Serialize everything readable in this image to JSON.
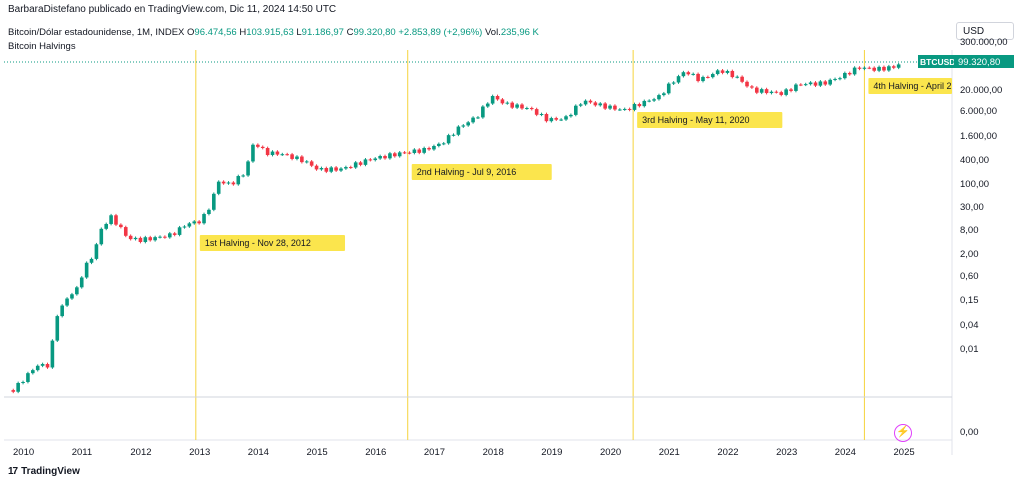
{
  "header": {
    "attribution": "BarbaraDistefano publicado en TradingView.com, Dic 11, 2024 14:50 UTC",
    "symbol": "Bitcoin/Dólar estadounidense, 1M, INDEX",
    "open_label": "O",
    "open_value": "96.474,56",
    "high_label": "H",
    "high_value": "103.915,63",
    "low_label": "L",
    "low_value": "91.186,97",
    "close_label": "C",
    "close_value": "99.320,80",
    "change_value": "+2.853,89 (+2,96%)",
    "vol_label": "Vol.",
    "vol_value": "235,96 K",
    "indicator": "Bitcoin Halvings"
  },
  "currency": "USD",
  "brand": "TradingView",
  "colors": {
    "up": "#089981",
    "down": "#f23645",
    "halving_line": "#f5d33d",
    "callout_bg": "#fbe54d",
    "price_line": "#089981"
  },
  "chart_data": {
    "type": "candlestick",
    "y_scale": "log",
    "x_tick_labels": [
      "2010",
      "2011",
      "2012",
      "2013",
      "2014",
      "2015",
      "2016",
      "2017",
      "2018",
      "2019",
      "2020",
      "2021",
      "2022",
      "2023",
      "2024",
      "2025"
    ],
    "y_tick_labels": [
      "300.000,00",
      "20.000,00",
      "6.000,00",
      "1.600,00",
      "400,00",
      "100,00",
      "30,00",
      "8,00",
      "2,00",
      "0,60",
      "0,15",
      "0,04",
      "0,01",
      "0,00"
    ],
    "last_price_label": "BTCUSD",
    "last_price_value": "99.320,80",
    "halvings": [
      {
        "year": 2012.91,
        "label": "1st Halving - Nov 28, 2012"
      },
      {
        "year": 2016.52,
        "label": "2nd Halving - Jul 9, 2016"
      },
      {
        "year": 2020.36,
        "label": "3rd Halving - May 11, 2020"
      },
      {
        "year": 2024.3,
        "label": "4th Halving - April 2"
      }
    ],
    "series": [
      {
        "t": 2009.8,
        "close": 0.001
      },
      {
        "t": 2010.2,
        "close": 0.004
      },
      {
        "t": 2010.4,
        "close": 0.004
      },
      {
        "t": 2010.55,
        "close": 0.07
      },
      {
        "t": 2010.75,
        "close": 0.2
      },
      {
        "t": 2010.9,
        "close": 0.3
      },
      {
        "t": 2011.0,
        "close": 0.9
      },
      {
        "t": 2011.15,
        "close": 1.8
      },
      {
        "t": 2011.3,
        "close": 8
      },
      {
        "t": 2011.45,
        "close": 17
      },
      {
        "t": 2011.6,
        "close": 10
      },
      {
        "t": 2011.75,
        "close": 5
      },
      {
        "t": 2011.95,
        "close": 4.5
      },
      {
        "t": 2012.2,
        "close": 5
      },
      {
        "t": 2012.5,
        "close": 6
      },
      {
        "t": 2012.75,
        "close": 11
      },
      {
        "t": 2013.0,
        "close": 13
      },
      {
        "t": 2013.15,
        "close": 30
      },
      {
        "t": 2013.3,
        "close": 120
      },
      {
        "t": 2013.5,
        "close": 100
      },
      {
        "t": 2013.75,
        "close": 200
      },
      {
        "t": 2013.9,
        "close": 1100
      },
      {
        "t": 2014.1,
        "close": 600
      },
      {
        "t": 2014.4,
        "close": 550
      },
      {
        "t": 2014.75,
        "close": 380
      },
      {
        "t": 2015.0,
        "close": 230
      },
      {
        "t": 2015.4,
        "close": 240
      },
      {
        "t": 2015.9,
        "close": 420
      },
      {
        "t": 2016.4,
        "close": 580
      },
      {
        "t": 2016.8,
        "close": 700
      },
      {
        "t": 2017.1,
        "close": 1000
      },
      {
        "t": 2017.4,
        "close": 2500
      },
      {
        "t": 2017.7,
        "close": 4500
      },
      {
        "t": 2017.95,
        "close": 14000
      },
      {
        "t": 2018.2,
        "close": 9000
      },
      {
        "t": 2018.6,
        "close": 7000
      },
      {
        "t": 2018.9,
        "close": 3800
      },
      {
        "t": 2019.2,
        "close": 4000
      },
      {
        "t": 2019.5,
        "close": 11000
      },
      {
        "t": 2019.8,
        "close": 8500
      },
      {
        "t": 2020.2,
        "close": 6400
      },
      {
        "t": 2020.5,
        "close": 9500
      },
      {
        "t": 2020.8,
        "close": 13800
      },
      {
        "t": 2021.0,
        "close": 29000
      },
      {
        "t": 2021.25,
        "close": 58000
      },
      {
        "t": 2021.5,
        "close": 35000
      },
      {
        "t": 2021.85,
        "close": 61000
      },
      {
        "t": 2022.1,
        "close": 43000
      },
      {
        "t": 2022.4,
        "close": 20000
      },
      {
        "t": 2022.9,
        "close": 16500
      },
      {
        "t": 2023.2,
        "close": 28000
      },
      {
        "t": 2023.6,
        "close": 29000
      },
      {
        "t": 2023.9,
        "close": 42000
      },
      {
        "t": 2024.2,
        "close": 71000
      },
      {
        "t": 2024.5,
        "close": 64000
      },
      {
        "t": 2024.8,
        "close": 72000
      },
      {
        "t": 2024.95,
        "close": 99320
      }
    ]
  }
}
